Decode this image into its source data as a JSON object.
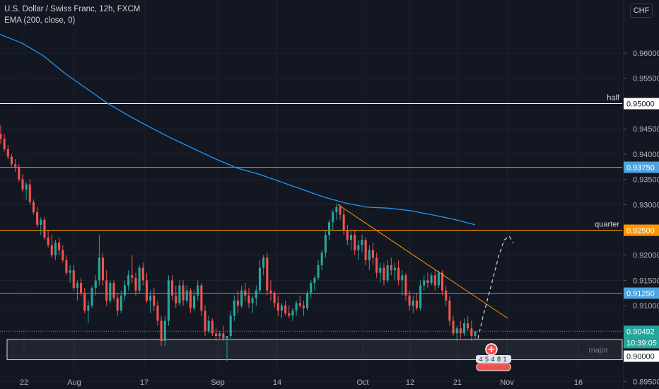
{
  "header": {
    "title": "U.S. Dollar / Swiss Franc, 12h, FXCM",
    "indicator": "EMA (200, close, 0)",
    "currency_button": "CHF"
  },
  "colors": {
    "background": "#131722",
    "up": "#26a69a",
    "down": "#ef5350",
    "ema": "#2196f3",
    "quarter": "#ff9800",
    "half": "#ffffff",
    "level": "#4fa3e0",
    "axis_text": "#b2b5be",
    "grid": "#1e222d"
  },
  "chart_data": {
    "type": "candlestick",
    "symbol": "USDCHF",
    "timeframe": "12h",
    "ylim": [
      0.8935,
      0.9705
    ],
    "grid": true,
    "y_ticks": [
      "0.96000",
      "0.95500",
      "0.95000",
      "0.94500",
      "0.94000",
      "0.93500",
      "0.93000",
      "0.92500",
      "0.92000",
      "0.91500",
      "0.91000",
      "0.90500",
      "0.90000",
      "0.89500"
    ],
    "x_ticks": [
      "22",
      "Aug",
      "17",
      "Sep",
      "14",
      "Oct",
      "12",
      "21",
      "Nov",
      "16"
    ],
    "horizontal_levels": [
      {
        "name": "half",
        "price": 0.95,
        "label": "half",
        "tag": "0.95000",
        "color": "#ffffff"
      },
      {
        "name": "level-upper",
        "price": 0.9375,
        "label": "",
        "tag": "0.93750",
        "color": "#4fa3e0"
      },
      {
        "name": "quarter",
        "price": 0.925,
        "label": "quarter",
        "tag": "0.92500",
        "color": "#ff9800"
      },
      {
        "name": "level-lower",
        "price": 0.9125,
        "label": "",
        "tag": "0.91250",
        "color": "#4fa3e0"
      }
    ],
    "zone": {
      "label": "major",
      "top": 0.9033,
      "bottom": 0.8993
    },
    "current_price": {
      "value": "0.90492",
      "countdown": "10:39:05"
    },
    "zone_price_tag": "0.90000",
    "ema": [
      0.9637,
      0.962,
      0.9595,
      0.956,
      0.953,
      0.95,
      0.9475,
      0.9452,
      0.943,
      0.941,
      0.939,
      0.9372,
      0.936,
      0.9345,
      0.933,
      0.9315,
      0.9303,
      0.9295,
      0.9293,
      0.9288,
      0.928,
      0.9271,
      0.926
    ],
    "trendline": {
      "from": 0.93,
      "to": 0.9075
    },
    "projection": [
      0.9035,
      0.908,
      0.912,
      0.916,
      0.92,
      0.923,
      0.9237,
      0.9224
    ],
    "event_badges": [
      "4",
      "5",
      "4",
      "8",
      "1"
    ],
    "candles": [
      [
        0.944,
        0.9458,
        0.942,
        0.943
      ],
      [
        0.943,
        0.944,
        0.9405,
        0.941
      ],
      [
        0.941,
        0.9418,
        0.939,
        0.9395
      ],
      [
        0.9395,
        0.94,
        0.9375,
        0.938
      ],
      [
        0.938,
        0.939,
        0.9365,
        0.9375
      ],
      [
        0.9375,
        0.938,
        0.9345,
        0.935
      ],
      [
        0.935,
        0.936,
        0.9325,
        0.933
      ],
      [
        0.933,
        0.9345,
        0.931,
        0.934
      ],
      [
        0.934,
        0.935,
        0.93,
        0.9305
      ],
      [
        0.9305,
        0.931,
        0.928,
        0.9285
      ],
      [
        0.9285,
        0.9295,
        0.9255,
        0.926
      ],
      [
        0.926,
        0.9275,
        0.924,
        0.927
      ],
      [
        0.927,
        0.9275,
        0.923,
        0.9235
      ],
      [
        0.9235,
        0.925,
        0.9215,
        0.922
      ],
      [
        0.922,
        0.924,
        0.9195,
        0.92
      ],
      [
        0.92,
        0.923,
        0.919,
        0.9225
      ],
      [
        0.9225,
        0.9235,
        0.92,
        0.921
      ],
      [
        0.921,
        0.922,
        0.9185,
        0.919
      ],
      [
        0.919,
        0.92,
        0.916,
        0.9165
      ],
      [
        0.9165,
        0.918,
        0.9145,
        0.917
      ],
      [
        0.917,
        0.918,
        0.913,
        0.9135
      ],
      [
        0.9135,
        0.915,
        0.911,
        0.9145
      ],
      [
        0.9145,
        0.9155,
        0.912,
        0.9125
      ],
      [
        0.9125,
        0.9135,
        0.9085,
        0.909
      ],
      [
        0.909,
        0.911,
        0.9065,
        0.91
      ],
      [
        0.91,
        0.914,
        0.9095,
        0.9135
      ],
      [
        0.9135,
        0.916,
        0.912,
        0.915
      ],
      [
        0.915,
        0.924,
        0.914,
        0.9195
      ],
      [
        0.9195,
        0.9205,
        0.914,
        0.915
      ],
      [
        0.915,
        0.917,
        0.91,
        0.911
      ],
      [
        0.911,
        0.915,
        0.9105,
        0.9145
      ],
      [
        0.9145,
        0.915,
        0.911,
        0.9115
      ],
      [
        0.9115,
        0.9125,
        0.908,
        0.909
      ],
      [
        0.909,
        0.913,
        0.9085,
        0.912
      ],
      [
        0.912,
        0.915,
        0.911,
        0.914
      ],
      [
        0.914,
        0.917,
        0.913,
        0.916
      ],
      [
        0.916,
        0.92,
        0.9145,
        0.9155
      ],
      [
        0.9155,
        0.9165,
        0.912,
        0.913
      ],
      [
        0.913,
        0.918,
        0.9125,
        0.9175
      ],
      [
        0.9175,
        0.9185,
        0.914,
        0.915
      ],
      [
        0.915,
        0.9165,
        0.9105,
        0.911
      ],
      [
        0.911,
        0.913,
        0.9085,
        0.912
      ],
      [
        0.912,
        0.9135,
        0.909,
        0.91
      ],
      [
        0.91,
        0.911,
        0.906,
        0.907
      ],
      [
        0.907,
        0.908,
        0.902,
        0.903
      ],
      [
        0.903,
        0.908,
        0.902,
        0.907
      ],
      [
        0.907,
        0.916,
        0.906,
        0.915
      ],
      [
        0.915,
        0.916,
        0.911,
        0.912
      ],
      [
        0.912,
        0.914,
        0.9095,
        0.9105
      ],
      [
        0.9105,
        0.915,
        0.91,
        0.914
      ],
      [
        0.914,
        0.915,
        0.91,
        0.911
      ],
      [
        0.911,
        0.914,
        0.9105,
        0.913
      ],
      [
        0.913,
        0.9135,
        0.9085,
        0.9095
      ],
      [
        0.9095,
        0.913,
        0.909,
        0.912
      ],
      [
        0.912,
        0.915,
        0.911,
        0.914
      ],
      [
        0.914,
        0.9145,
        0.908,
        0.909
      ],
      [
        0.909,
        0.91,
        0.904,
        0.905
      ],
      [
        0.905,
        0.908,
        0.9045,
        0.907
      ],
      [
        0.907,
        0.9075,
        0.904,
        0.9045
      ],
      [
        0.9045,
        0.9055,
        0.903,
        0.904
      ],
      [
        0.904,
        0.905,
        0.9035,
        0.9045
      ],
      [
        0.9045,
        0.906,
        0.903,
        0.9035
      ],
      [
        0.9035,
        0.904,
        0.899,
        0.904
      ],
      [
        0.904,
        0.909,
        0.9035,
        0.908
      ],
      [
        0.908,
        0.912,
        0.907,
        0.911
      ],
      [
        0.911,
        0.913,
        0.9085,
        0.91
      ],
      [
        0.91,
        0.914,
        0.9095,
        0.913
      ],
      [
        0.913,
        0.9145,
        0.911,
        0.912
      ],
      [
        0.912,
        0.9135,
        0.9095,
        0.9105
      ],
      [
        0.9105,
        0.912,
        0.9085,
        0.9115
      ],
      [
        0.9115,
        0.914,
        0.91,
        0.913
      ],
      [
        0.913,
        0.919,
        0.9125,
        0.9175
      ],
      [
        0.9175,
        0.92,
        0.916,
        0.9195
      ],
      [
        0.9195,
        0.9205,
        0.912,
        0.913
      ],
      [
        0.913,
        0.915,
        0.911,
        0.9125
      ],
      [
        0.9125,
        0.913,
        0.9095,
        0.9105
      ],
      [
        0.9105,
        0.912,
        0.908,
        0.909
      ],
      [
        0.909,
        0.9105,
        0.9075,
        0.91
      ],
      [
        0.91,
        0.911,
        0.908,
        0.9085
      ],
      [
        0.9085,
        0.91,
        0.9075,
        0.908
      ],
      [
        0.908,
        0.9095,
        0.907,
        0.909
      ],
      [
        0.909,
        0.911,
        0.908,
        0.9105
      ],
      [
        0.9105,
        0.912,
        0.9095,
        0.91
      ],
      [
        0.91,
        0.911,
        0.908,
        0.9095
      ],
      [
        0.9095,
        0.913,
        0.909,
        0.9125
      ],
      [
        0.9125,
        0.915,
        0.9115,
        0.9145
      ],
      [
        0.9145,
        0.916,
        0.913,
        0.9155
      ],
      [
        0.9155,
        0.919,
        0.915,
        0.918
      ],
      [
        0.918,
        0.921,
        0.917,
        0.9205
      ],
      [
        0.9205,
        0.925,
        0.9195,
        0.924
      ],
      [
        0.924,
        0.927,
        0.923,
        0.9265
      ],
      [
        0.9265,
        0.929,
        0.925,
        0.9285
      ],
      [
        0.9285,
        0.9302,
        0.927,
        0.9295
      ],
      [
        0.9295,
        0.93,
        0.927,
        0.928
      ],
      [
        0.928,
        0.929,
        0.924,
        0.925
      ],
      [
        0.925,
        0.926,
        0.922,
        0.923
      ],
      [
        0.923,
        0.925,
        0.921,
        0.924
      ],
      [
        0.924,
        0.925,
        0.92,
        0.921
      ],
      [
        0.921,
        0.923,
        0.919,
        0.922
      ],
      [
        0.922,
        0.924,
        0.9205,
        0.923
      ],
      [
        0.923,
        0.9235,
        0.918,
        0.919
      ],
      [
        0.919,
        0.922,
        0.917,
        0.921
      ],
      [
        0.921,
        0.9225,
        0.918,
        0.9195
      ],
      [
        0.9195,
        0.9205,
        0.9155,
        0.9165
      ],
      [
        0.9165,
        0.9185,
        0.9145,
        0.9175
      ],
      [
        0.9175,
        0.9185,
        0.914,
        0.915
      ],
      [
        0.915,
        0.919,
        0.9145,
        0.918
      ],
      [
        0.918,
        0.9195,
        0.916,
        0.917
      ],
      [
        0.917,
        0.9185,
        0.915,
        0.9175
      ],
      [
        0.9175,
        0.919,
        0.914,
        0.915
      ],
      [
        0.915,
        0.917,
        0.912,
        0.916
      ],
      [
        0.916,
        0.9165,
        0.911,
        0.912
      ],
      [
        0.912,
        0.913,
        0.909,
        0.91
      ],
      [
        0.91,
        0.912,
        0.9085,
        0.911
      ],
      [
        0.911,
        0.9125,
        0.909,
        0.9095
      ],
      [
        0.9095,
        0.915,
        0.909,
        0.914
      ],
      [
        0.914,
        0.916,
        0.913,
        0.915
      ],
      [
        0.915,
        0.9165,
        0.9135,
        0.9145
      ],
      [
        0.9145,
        0.9165,
        0.914,
        0.916
      ],
      [
        0.916,
        0.917,
        0.913,
        0.914
      ],
      [
        0.914,
        0.917,
        0.9135,
        0.9165
      ],
      [
        0.9165,
        0.917,
        0.912,
        0.913
      ],
      [
        0.913,
        0.914,
        0.91,
        0.911
      ],
      [
        0.911,
        0.912,
        0.906,
        0.907
      ],
      [
        0.907,
        0.908,
        0.904,
        0.9045
      ],
      [
        0.9045,
        0.906,
        0.903,
        0.9055
      ],
      [
        0.9055,
        0.907,
        0.9035,
        0.9045
      ],
      [
        0.9045,
        0.9075,
        0.904,
        0.9065
      ],
      [
        0.9065,
        0.908,
        0.905,
        0.9055
      ],
      [
        0.9055,
        0.907,
        0.903,
        0.904
      ],
      [
        0.904,
        0.905,
        0.9034,
        0.9049
      ]
    ]
  }
}
